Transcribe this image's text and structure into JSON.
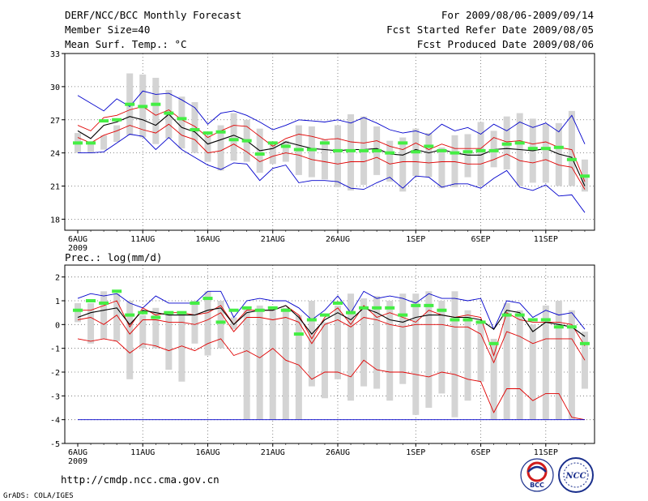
{
  "header": {
    "title": "DERF/NCC/BCC Monthly Forecast",
    "member_size": "Member Size=40",
    "variable": "Mean Surf. Temp.: °C",
    "period": "For 2009/08/06-2009/09/14",
    "started": "Fcst Started Refer Date 2009/08/05",
    "produced": "Fcst Produced Date 2009/08/06"
  },
  "footer": {
    "url": "http://cmdp.ncc.cma.gov.cn",
    "credit": "GrADS: COLA/IGES",
    "logo_left_text": "BCC",
    "logo_right_text": "NCC"
  },
  "colors": {
    "box": "#d4d4d4",
    "ensemble_mean": "#000000",
    "percentile_band": "#e00000",
    "envelope": "#0000cc",
    "observed_mark": "#44ee44",
    "grid": "#666666"
  },
  "chart_data": [
    {
      "type": "box",
      "title": "Mean Surf. Temp.: °C",
      "ylim": [
        17,
        33
      ],
      "yticks": [
        18,
        21,
        24,
        27,
        30,
        33
      ],
      "x_tick_labels": [
        "6AUG",
        "11AUG",
        "16AUG",
        "21AUG",
        "26AUG",
        "1SEP",
        "6SEP",
        "11SEP"
      ],
      "x_tick_days": [
        1,
        6,
        11,
        16,
        21,
        27,
        32,
        37
      ],
      "year_label": "2009",
      "days": 40,
      "series": [
        {
          "name": "max",
          "color": "blue",
          "values": [
            29.2,
            28.5,
            27.8,
            28.9,
            28.2,
            29.6,
            29.3,
            29.4,
            28.8,
            28.1,
            26.6,
            27.6,
            27.8,
            27.4,
            26.8,
            26.1,
            26.5,
            27.0,
            26.9,
            26.8,
            27.0,
            26.7,
            27.2,
            26.7,
            26.1,
            25.8,
            26.0,
            25.6,
            26.6,
            26.0,
            26.3,
            25.7,
            26.6,
            26.0,
            26.8,
            26.3,
            26.7,
            25.9,
            27.4,
            24.8
          ]
        },
        {
          "name": "p90",
          "color": "red",
          "values": [
            26.5,
            26.0,
            27.2,
            27.4,
            27.9,
            28.2,
            27.4,
            27.9,
            27.0,
            26.4,
            25.4,
            26.0,
            26.5,
            26.4,
            25.5,
            24.6,
            25.3,
            25.7,
            25.5,
            25.2,
            25.3,
            25.0,
            24.9,
            25.1,
            24.6,
            24.3,
            24.9,
            24.3,
            24.8,
            24.4,
            24.4,
            24.4,
            25.4,
            25.0,
            25.1,
            24.8,
            25.0,
            24.5,
            24.3,
            21.4
          ]
        },
        {
          "name": "mean",
          "color": "black",
          "values": [
            26.0,
            25.3,
            26.5,
            26.8,
            27.3,
            27.0,
            26.5,
            27.5,
            26.3,
            25.9,
            24.8,
            25.2,
            25.6,
            25.1,
            24.2,
            24.4,
            25.0,
            24.7,
            24.4,
            24.3,
            24.2,
            24.3,
            24.3,
            24.4,
            23.9,
            23.8,
            24.3,
            24.0,
            24.3,
            24.0,
            23.8,
            23.8,
            24.3,
            24.4,
            24.3,
            24.2,
            24.4,
            23.9,
            23.6,
            21.0
          ]
        },
        {
          "name": "p10",
          "color": "red",
          "values": [
            25.4,
            24.9,
            25.6,
            26.0,
            26.5,
            26.1,
            25.8,
            26.6,
            25.6,
            25.2,
            24.0,
            24.2,
            24.8,
            24.1,
            23.2,
            23.7,
            24.0,
            23.8,
            23.4,
            23.2,
            23.0,
            23.2,
            23.2,
            23.6,
            23.0,
            23.2,
            23.2,
            23.1,
            23.2,
            23.2,
            23.0,
            23.0,
            23.4,
            23.9,
            23.3,
            23.1,
            23.4,
            22.9,
            22.7,
            20.7
          ]
        },
        {
          "name": "min",
          "color": "blue",
          "values": [
            24.0,
            24.0,
            24.1,
            24.9,
            25.7,
            25.5,
            24.3,
            25.4,
            24.3,
            23.6,
            22.9,
            22.5,
            23.1,
            23.0,
            21.5,
            22.6,
            22.9,
            21.3,
            21.5,
            21.5,
            21.4,
            20.8,
            20.7,
            21.3,
            21.8,
            20.8,
            21.9,
            21.8,
            20.9,
            21.2,
            21.2,
            20.8,
            21.7,
            22.4,
            20.9,
            20.6,
            21.1,
            20.1,
            20.2,
            18.6
          ]
        },
        {
          "name": "box_low",
          "values": [
            24.0,
            24.0,
            24.3,
            25.0,
            25.6,
            25.4,
            24.8,
            25.3,
            24.4,
            24.0,
            23.2,
            22.4,
            23.3,
            23.2,
            22.2,
            23.0,
            23.2,
            22.0,
            21.8,
            21.6,
            20.9,
            20.6,
            21.1,
            22.0,
            21.4,
            20.5,
            21.9,
            21.8,
            20.8,
            20.9,
            21.8,
            21.0,
            22.7,
            22.5,
            21.0,
            21.3,
            21.3,
            21.0,
            21.0,
            20.5
          ]
        },
        {
          "name": "box_high",
          "values": [
            25.8,
            24.8,
            25.6,
            26.5,
            31.2,
            31.1,
            30.8,
            29.7,
            29.1,
            28.6,
            25.6,
            26.5,
            27.6,
            27.0,
            26.2,
            24.7,
            25.1,
            26.5,
            26.4,
            25.2,
            26.5,
            27.5,
            27.3,
            26.4,
            25.1,
            25.4,
            26.2,
            25.8,
            24.5,
            25.6,
            25.7,
            26.8,
            26.0,
            27.3,
            27.6,
            27.1,
            26.6,
            26.7,
            27.8,
            23.4
          ]
        },
        {
          "name": "observed",
          "values": [
            24.9,
            24.9,
            26.9,
            27.0,
            28.4,
            28.2,
            28.4,
            27.6,
            27.1,
            26.1,
            25.8,
            25.9,
            25.2,
            25.1,
            23.9,
            24.9,
            24.6,
            24.3,
            24.3,
            24.9,
            24.2,
            24.2,
            24.2,
            24.2,
            24.0,
            24.9,
            24.1,
            24.6,
            24.2,
            24.0,
            24.1,
            24.2,
            24.2,
            24.8,
            24.9,
            24.4,
            24.4,
            24.5,
            23.4,
            21.9
          ]
        }
      ]
    },
    {
      "type": "box",
      "title": "Prec.: log(mm/d)",
      "ylim": [
        -5,
        2.5
      ],
      "yticks": [
        -5,
        -4,
        -3,
        -2,
        -1,
        0,
        1,
        2
      ],
      "x_tick_labels": [
        "6AUG",
        "11AUG",
        "16AUG",
        "21AUG",
        "26AUG",
        "1SEP",
        "6SEP",
        "11SEP"
      ],
      "x_tick_days": [
        1,
        6,
        11,
        16,
        21,
        27,
        32,
        37
      ],
      "year_label": "2009",
      "days": 40,
      "series": [
        {
          "name": "max",
          "color": "blue",
          "values": [
            1.1,
            1.3,
            1.2,
            1.3,
            0.9,
            0.7,
            1.2,
            0.9,
            0.9,
            0.9,
            1.4,
            1.4,
            0.3,
            1.0,
            1.1,
            1.0,
            1.0,
            0.7,
            0.2,
            0.6,
            1.2,
            0.5,
            1.4,
            1.1,
            1.2,
            1.1,
            0.9,
            1.3,
            1.1,
            1.1,
            1.0,
            1.1,
            -0.2,
            1.0,
            0.9,
            0.3,
            0.6,
            0.4,
            0.5,
            -0.2
          ]
        },
        {
          "name": "p90",
          "color": "red",
          "values": [
            0.6,
            0.6,
            0.8,
            1.0,
            -0.1,
            0.7,
            0.4,
            0.5,
            0.5,
            0.4,
            0.5,
            0.8,
            0.0,
            0.6,
            0.6,
            0.6,
            0.8,
            0.4,
            -0.6,
            0.3,
            0.7,
            0.0,
            0.8,
            0.3,
            0.5,
            0.3,
            0.1,
            0.6,
            0.4,
            0.3,
            0.4,
            0.3,
            -1.3,
            0.5,
            0.2,
            0.1,
            0.1,
            0.1,
            0.0,
            -0.9
          ]
        },
        {
          "name": "mean",
          "color": "black",
          "values": [
            0.3,
            0.5,
            0.6,
            0.7,
            0.0,
            0.6,
            0.5,
            0.4,
            0.4,
            0.4,
            0.6,
            0.7,
            0.0,
            0.5,
            0.6,
            0.6,
            0.8,
            0.3,
            -0.4,
            0.2,
            0.5,
            0.2,
            0.7,
            0.5,
            0.2,
            0.1,
            0.3,
            0.4,
            0.4,
            0.3,
            0.3,
            0.2,
            -0.2,
            0.6,
            0.5,
            -0.3,
            0.1,
            0.0,
            -0.1,
            -0.5
          ]
        },
        {
          "name": "p10",
          "color": "red",
          "values": [
            0.2,
            0.3,
            0.0,
            0.4,
            -0.4,
            0.2,
            0.2,
            0.1,
            0.1,
            0.0,
            0.2,
            0.5,
            -0.3,
            0.3,
            0.3,
            0.2,
            0.3,
            0.1,
            -0.8,
            0.0,
            0.2,
            -0.1,
            0.3,
            0.2,
            0.0,
            -0.1,
            0.0,
            0.0,
            0.0,
            -0.1,
            -0.1,
            -0.4,
            -1.6,
            -0.3,
            -0.5,
            -0.8,
            -0.6,
            -0.6,
            -0.6,
            -1.5
          ]
        },
        {
          "name": "p_low",
          "color": "red",
          "values": [
            -0.6,
            -0.7,
            -0.6,
            -0.7,
            -1.2,
            -0.8,
            -0.9,
            -1.1,
            -0.9,
            -1.1,
            -0.8,
            -0.6,
            -1.3,
            -1.1,
            -1.4,
            -1.0,
            -1.5,
            -1.7,
            -2.3,
            -2.0,
            -2.0,
            -2.2,
            -1.5,
            -1.9,
            -2.0,
            -2.0,
            -2.1,
            -2.2,
            -2.0,
            -2.1,
            -2.3,
            -2.4,
            -3.7,
            -2.7,
            -2.7,
            -3.2,
            -2.9,
            -2.9,
            -3.9,
            -4.0
          ]
        },
        {
          "name": "min",
          "color": "blue",
          "values": [
            -4.0,
            -4.0,
            -4.0,
            -4.0,
            -4.0,
            -4.0,
            -4.0,
            -4.0,
            -4.0,
            -4.0,
            -4.0,
            -4.0,
            -4.0,
            -4.0,
            -4.0,
            -4.0,
            -4.0,
            -4.0,
            -4.0,
            -4.0,
            -4.0,
            -4.0,
            -4.0,
            -4.0,
            -4.0,
            -4.0,
            -4.0,
            -4.0,
            -4.0,
            -4.0,
            -4.0,
            -4.0,
            -4.0,
            -4.0,
            -4.0,
            -4.0,
            -4.0,
            -4.0,
            -4.0,
            -4.0
          ]
        },
        {
          "name": "box_low",
          "values": [
            0.1,
            -0.8,
            -0.6,
            -0.7,
            -2.3,
            -1.0,
            -1.0,
            -1.9,
            -2.4,
            -0.8,
            -1.3,
            -1.0,
            -0.2,
            -4.0,
            -4.0,
            -4.0,
            -4.0,
            -4.0,
            -2.6,
            -3.1,
            -2.3,
            -3.2,
            -2.6,
            -2.7,
            -3.2,
            -2.5,
            -3.8,
            -3.5,
            -2.9,
            -3.9,
            -3.2,
            -2.4,
            -4.0,
            -4.0,
            -4.0,
            -4.0,
            -4.0,
            -4.0,
            -4.0,
            -2.7
          ]
        },
        {
          "name": "box_high",
          "values": [
            0.9,
            0.9,
            1.4,
            1.3,
            1.0,
            0.4,
            0.7,
            0.5,
            0.5,
            1.0,
            1.4,
            1.0,
            0.3,
            0.7,
            0.8,
            0.7,
            0.7,
            0.4,
            1.0,
            0.1,
            0.8,
            1.3,
            1.1,
            1.2,
            1.0,
            1.3,
            1.3,
            1.4,
            1.0,
            1.4,
            0.6,
            0.1,
            -0.6,
            0.9,
            0.6,
            0.0,
            0.8,
            1.0,
            0.6,
            -0.3
          ]
        },
        {
          "name": "observed",
          "values": [
            0.6,
            1.0,
            0.9,
            1.4,
            0.4,
            0.5,
            0.3,
            0.5,
            0.5,
            0.9,
            1.1,
            0.1,
            0.6,
            0.7,
            0.6,
            0.7,
            0.6,
            -0.4,
            0.2,
            0.4,
            0.9,
            0.5,
            0.7,
            0.7,
            0.7,
            0.4,
            0.8,
            0.8,
            0.6,
            0.2,
            0.2,
            0.1,
            -0.8,
            0.4,
            0.4,
            0.2,
            0.2,
            -0.1,
            -0.1,
            -0.8
          ]
        }
      ]
    }
  ]
}
